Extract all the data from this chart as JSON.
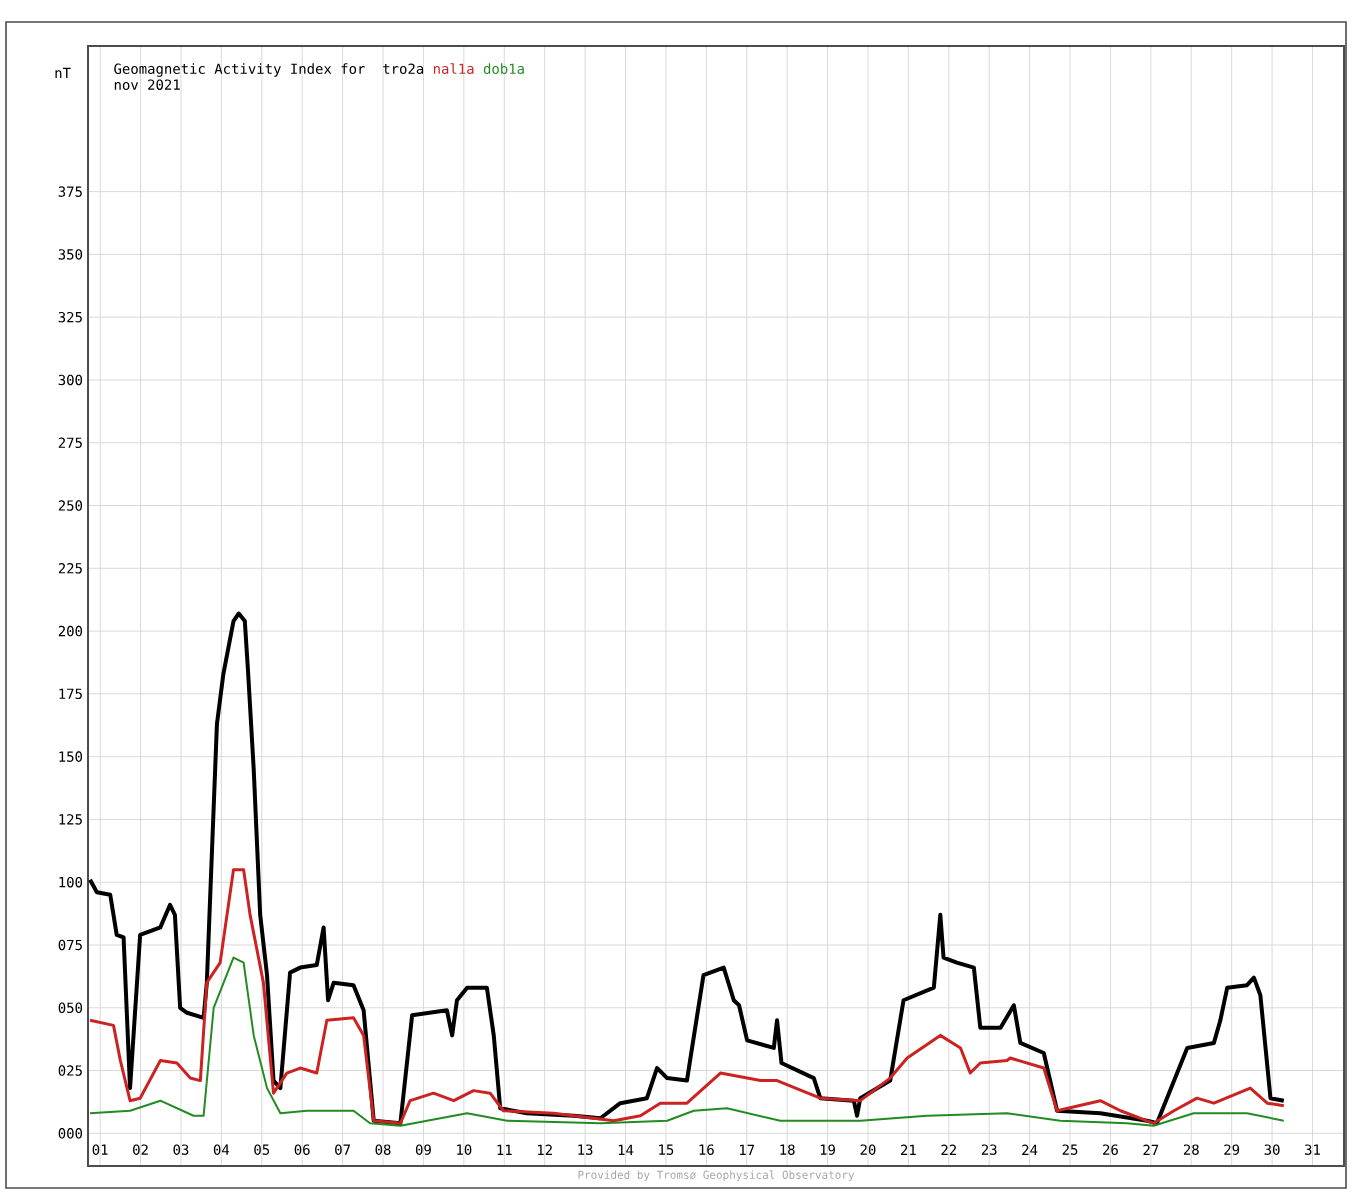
{
  "chart_data": {
    "type": "line",
    "title": "Geomagnetic Activity Index for",
    "subtitle": "nov 2021",
    "ylabel": "nT",
    "annotations": [
      "Provided by Tromsø Geophysical Observatory"
    ],
    "xlim": [
      0.7,
      31.78
    ],
    "ylim": [
      -13,
      433
    ],
    "xticks": [
      {
        "value": 1,
        "label": "01"
      },
      {
        "value": 2,
        "label": "02"
      },
      {
        "value": 3,
        "label": "03"
      },
      {
        "value": 4,
        "label": "04"
      },
      {
        "value": 5,
        "label": "05"
      },
      {
        "value": 6,
        "label": "06"
      },
      {
        "value": 7,
        "label": "07"
      },
      {
        "value": 8,
        "label": "08"
      },
      {
        "value": 9,
        "label": "09"
      },
      {
        "value": 10,
        "label": "10"
      },
      {
        "value": 11,
        "label": "11"
      },
      {
        "value": 12,
        "label": "12"
      },
      {
        "value": 13,
        "label": "13"
      },
      {
        "value": 14,
        "label": "14"
      },
      {
        "value": 15,
        "label": "15"
      },
      {
        "value": 16,
        "label": "16"
      },
      {
        "value": 17,
        "label": "17"
      },
      {
        "value": 18,
        "label": "18"
      },
      {
        "value": 19,
        "label": "19"
      },
      {
        "value": 20,
        "label": "20"
      },
      {
        "value": 21,
        "label": "21"
      },
      {
        "value": 22,
        "label": "22"
      },
      {
        "value": 23,
        "label": "23"
      },
      {
        "value": 24,
        "label": "24"
      },
      {
        "value": 25,
        "label": "25"
      },
      {
        "value": 26,
        "label": "26"
      },
      {
        "value": 27,
        "label": "27"
      },
      {
        "value": 28,
        "label": "28"
      },
      {
        "value": 29,
        "label": "29"
      },
      {
        "value": 30,
        "label": "30"
      },
      {
        "value": 31,
        "label": "31"
      }
    ],
    "yticks": [
      {
        "value": 0,
        "label": "000"
      },
      {
        "value": 25,
        "label": "025"
      },
      {
        "value": 50,
        "label": "050"
      },
      {
        "value": 75,
        "label": "075"
      },
      {
        "value": 100,
        "label": "100"
      },
      {
        "value": 125,
        "label": "125"
      },
      {
        "value": 150,
        "label": "150"
      },
      {
        "value": 175,
        "label": "175"
      },
      {
        "value": 200,
        "label": "200"
      },
      {
        "value": 225,
        "label": "225"
      },
      {
        "value": 250,
        "label": "250"
      },
      {
        "value": 275,
        "label": "275"
      },
      {
        "value": 300,
        "label": "300"
      },
      {
        "value": 325,
        "label": "325"
      },
      {
        "value": 350,
        "label": "350"
      },
      {
        "value": 375,
        "label": "375"
      }
    ],
    "grid": true,
    "series": [
      {
        "name": "tro2a",
        "color": "#000000",
        "x": [
          0.75,
          0.92,
          1.25,
          1.41,
          1.58,
          1.74,
          1.99,
          2.49,
          2.73,
          2.85,
          2.98,
          3.15,
          3.56,
          3.64,
          3.89,
          4.05,
          4.3,
          4.43,
          4.58,
          4.66,
          4.8,
          4.96,
          5.13,
          5.29,
          5.46,
          5.7,
          5.95,
          6.36,
          6.53,
          6.64,
          6.78,
          7.27,
          7.52,
          7.77,
          8.43,
          8.72,
          9.58,
          9.71,
          9.83,
          10.08,
          10.57,
          10.74,
          10.9,
          11.56,
          12.72,
          13.38,
          13.87,
          14.53,
          14.78,
          15.03,
          15.52,
          15.93,
          16.43,
          16.68,
          16.81,
          17.01,
          17.67,
          17.75,
          17.86,
          18.66,
          18.82,
          19.65,
          19.73,
          19.81,
          20.55,
          20.88,
          21.63,
          21.79,
          21.87,
          22.2,
          22.62,
          22.78,
          23.28,
          23.61,
          23.77,
          24.35,
          24.68,
          25.75,
          26.91,
          27.15,
          27.9,
          28.56,
          28.72,
          28.89,
          29.38,
          29.55,
          29.71,
          29.96,
          30.29
        ],
        "values": [
          101,
          96,
          95,
          79,
          78,
          18,
          79,
          82,
          91,
          87,
          50,
          48,
          46,
          60,
          163,
          183,
          204,
          207,
          204,
          184,
          145,
          87,
          63,
          21,
          18,
          64,
          66,
          67,
          82,
          53,
          60,
          59,
          49,
          5,
          4,
          47,
          49,
          39,
          53,
          58,
          58,
          39,
          10,
          8,
          7,
          6,
          12,
          14,
          26,
          22,
          21,
          63,
          66,
          53,
          51,
          37,
          34,
          45,
          28,
          22,
          14,
          13,
          7,
          14,
          21,
          53,
          58,
          87,
          70,
          68,
          66,
          42,
          42,
          51,
          36,
          32,
          9,
          8,
          5,
          4,
          34,
          36,
          45,
          58,
          59,
          62,
          55,
          14,
          13
        ]
      },
      {
        "name": "nal1a",
        "color": "#cc2222",
        "x": [
          0.75,
          1.33,
          1.5,
          1.74,
          1.99,
          2.49,
          2.9,
          3.23,
          3.48,
          3.64,
          3.97,
          4.3,
          4.55,
          4.71,
          5.04,
          5.29,
          5.62,
          5.95,
          6.36,
          6.61,
          7.27,
          7.52,
          7.77,
          8.43,
          8.67,
          9.25,
          9.75,
          10.24,
          10.65,
          10.98,
          12.22,
          13.71,
          14.37,
          14.86,
          15.52,
          16.35,
          17.34,
          17.75,
          18.82,
          19.81,
          20.55,
          20.97,
          21.79,
          22.29,
          22.53,
          22.78,
          23.44,
          23.52,
          24.35,
          24.68,
          25.75,
          26.25,
          27.07,
          27.57,
          28.14,
          28.56,
          29.46,
          29.88,
          30.29
        ],
        "values": [
          45,
          43,
          29,
          13,
          14,
          29,
          28,
          22,
          21,
          60,
          68,
          105,
          105,
          87,
          60,
          16,
          24,
          26,
          24,
          45,
          46,
          39,
          5,
          4,
          13,
          16,
          13,
          17,
          16,
          9,
          8,
          5,
          7,
          12,
          12,
          24,
          21,
          21,
          14,
          13,
          22,
          30,
          39,
          34,
          24,
          28,
          29,
          30,
          26,
          9,
          13,
          9,
          4,
          9,
          14,
          12,
          18,
          12,
          11
        ]
      },
      {
        "name": "dob1a",
        "color": "#228b22",
        "x": [
          0.75,
          1.74,
          2.49,
          3.31,
          3.56,
          3.81,
          4.3,
          4.55,
          4.8,
          5.13,
          5.46,
          6.12,
          7.27,
          7.68,
          8.43,
          10.08,
          11.07,
          13.38,
          15.03,
          15.69,
          16.51,
          17.83,
          19.81,
          21.46,
          23.44,
          24.76,
          26.41,
          27.07,
          28.06,
          29.38,
          30.29
        ],
        "values": [
          8,
          9,
          13,
          7,
          7,
          50,
          70,
          68,
          39,
          18,
          8,
          9,
          9,
          4,
          3,
          8,
          5,
          4,
          5,
          9,
          10,
          5,
          5,
          7,
          8,
          5,
          4,
          3,
          8,
          8,
          5
        ]
      }
    ]
  }
}
